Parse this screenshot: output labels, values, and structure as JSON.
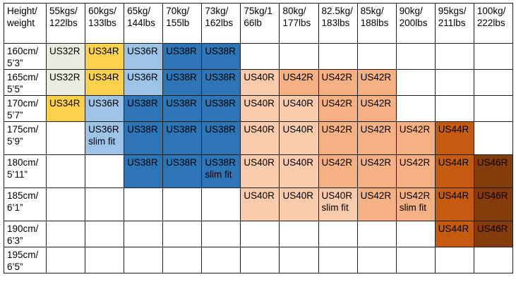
{
  "colors": {
    "us32": "#eaece1",
    "us34": "#fbd04a",
    "us36": "#9dc3e6",
    "us38": "#2e75b6",
    "us40": "#f8cbad",
    "us42": "#f4b183",
    "us44": "#c55a11",
    "us46": "#843c0c"
  },
  "table": {
    "col_headers": [
      "Height/\nweight",
      "55kgs/\n122lbs",
      "60kgs/\n133lbs",
      "65kg/\n144lbs",
      "70kg/\n155lb",
      "73kg/\n162lbs",
      "75kg/1\n66lb",
      "80kg/\n177lbs",
      "82.5kg/\n183lbs",
      "85kg/\n188lbs",
      "90kg/\n200lbs",
      "95kgs/\n211lbs",
      "100kg/\n222lbs"
    ],
    "rows": [
      {
        "label": "160cm/\n5’3”",
        "tall": false,
        "cells": [
          {
            "size": "US32R",
            "color": "us32"
          },
          {
            "size": "US34R",
            "color": "us34"
          },
          {
            "size": "US36R",
            "color": "us36"
          },
          {
            "size": "US38R",
            "color": "us38"
          },
          {
            "size": "US38R",
            "color": "us38"
          },
          {},
          {},
          {},
          {},
          {},
          {},
          {}
        ]
      },
      {
        "label": "165cm/\n5’5”",
        "tall": false,
        "cells": [
          {
            "size": "US32R",
            "color": "us32"
          },
          {
            "size": "US34R",
            "color": "us34"
          },
          {
            "size": "US36R",
            "color": "us36"
          },
          {
            "size": "US38R",
            "color": "us38"
          },
          {
            "size": "US38R",
            "color": "us38"
          },
          {
            "size": "US40R",
            "color": "us40"
          },
          {
            "size": "US42R",
            "color": "us42"
          },
          {
            "size": "US42R",
            "color": "us42"
          },
          {
            "size": "US42R",
            "color": "us42"
          },
          {},
          {},
          {}
        ]
      },
      {
        "label": "170cm/\n5’7”",
        "tall": false,
        "cells": [
          {
            "size": "US34R",
            "color": "us34"
          },
          {
            "size": "US36R",
            "color": "us36"
          },
          {
            "size": "US38R",
            "color": "us38"
          },
          {
            "size": "US38R",
            "color": "us38"
          },
          {
            "size": "US38R",
            "color": "us38"
          },
          {
            "size": "US40R",
            "color": "us40"
          },
          {
            "size": "US40R",
            "color": "us40"
          },
          {
            "size": "US42R",
            "color": "us42"
          },
          {
            "size": "US42R",
            "color": "us42"
          },
          {},
          {},
          {}
        ]
      },
      {
        "label": "175cm/\n5’9”",
        "tall": true,
        "cells": [
          {},
          {
            "size": "US36R\nslim fit",
            "color": "us36"
          },
          {
            "size": "US38R",
            "color": "us38"
          },
          {
            "size": "US38R",
            "color": "us38"
          },
          {
            "size": "US38R",
            "color": "us38"
          },
          {
            "size": "US40R",
            "color": "us40"
          },
          {
            "size": "US40R",
            "color": "us40"
          },
          {
            "size": "US42R",
            "color": "us42"
          },
          {
            "size": "US42R",
            "color": "us42"
          },
          {
            "size": "US42R",
            "color": "us42"
          },
          {
            "size": "US44R",
            "color": "us44"
          },
          {}
        ]
      },
      {
        "label": "180cm/\n5’11”",
        "tall": true,
        "cells": [
          {},
          {},
          {
            "size": "US38R",
            "color": "us38"
          },
          {
            "size": "US38R",
            "color": "us38"
          },
          {
            "size": "US38R\nslim fit",
            "color": "us38"
          },
          {
            "size": "US40R",
            "color": "us40"
          },
          {
            "size": "US40R",
            "color": "us40"
          },
          {
            "size": "US42R",
            "color": "us42"
          },
          {
            "size": "US42R",
            "color": "us42"
          },
          {
            "size": "US42R",
            "color": "us42"
          },
          {
            "size": "US44R",
            "color": "us44"
          },
          {
            "size": "US46R",
            "color": "us46"
          }
        ]
      },
      {
        "label": "185cm/\n6’1”",
        "tall": true,
        "cells": [
          {},
          {},
          {},
          {},
          {},
          {
            "size": "US40R",
            "color": "us40"
          },
          {
            "size": "US40R",
            "color": "us40"
          },
          {
            "size": "US40R\nslim fit",
            "color": "us40"
          },
          {
            "size": "US42R",
            "color": "us42"
          },
          {
            "size": "US42R\nslim fit",
            "color": "us42"
          },
          {
            "size": "US44R",
            "color": "us44"
          },
          {
            "size": "US46R",
            "color": "us46"
          }
        ]
      },
      {
        "label": "190cm/\n6’3”",
        "tall": false,
        "cells": [
          {},
          {},
          {},
          {},
          {},
          {},
          {},
          {},
          {},
          {},
          {
            "size": "US44R",
            "color": "us44"
          },
          {
            "size": "US46R",
            "color": "us46"
          }
        ]
      },
      {
        "label": "195cm/\n6’5”",
        "tall": false,
        "cells": [
          {},
          {},
          {},
          {},
          {},
          {},
          {},
          {},
          {},
          {},
          {},
          {}
        ]
      }
    ]
  }
}
